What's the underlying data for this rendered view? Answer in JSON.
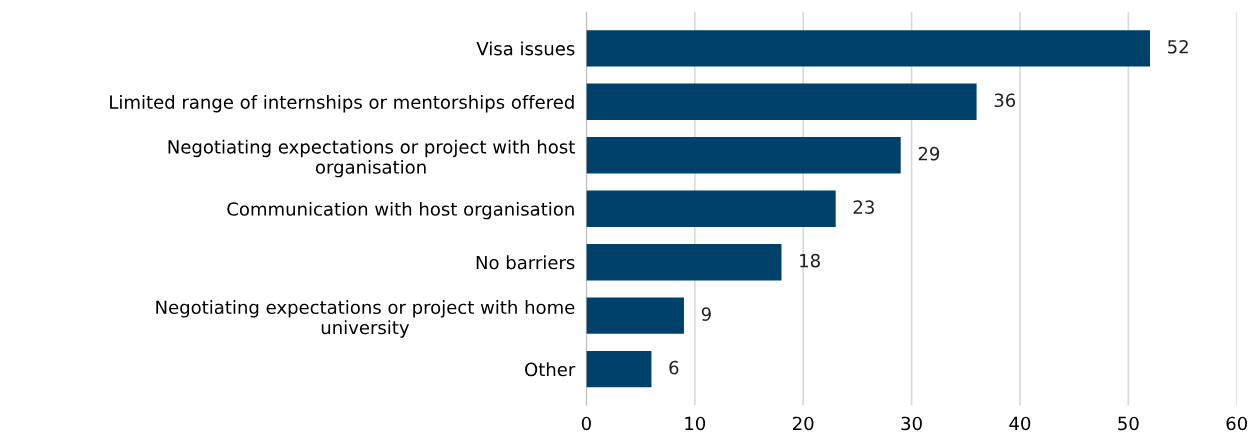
{
  "chart_data": {
    "type": "bar",
    "orientation": "horizontal",
    "categories": [
      "Visa issues",
      "Limited range of internships or mentorships offered",
      "Negotiating expectations or project with host\norganisation",
      "Communication with host organisation",
      "No barriers",
      "Negotiating expectations or project with home\nuniversity",
      "Other"
    ],
    "values": [
      52,
      36,
      29,
      23,
      18,
      9,
      6
    ],
    "color": "#00416b",
    "xlim": [
      0,
      60
    ],
    "xticks": [
      0,
      10,
      20,
      30,
      40,
      50,
      60
    ],
    "grid": "x",
    "data_labels": true
  }
}
